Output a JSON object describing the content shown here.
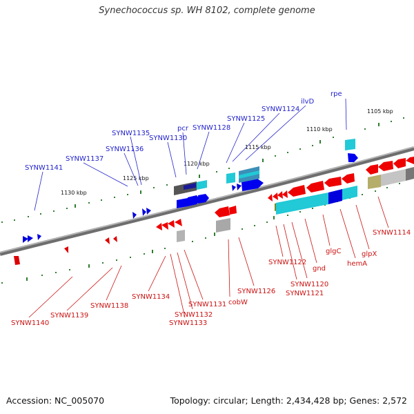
{
  "title": "Synechococcus sp. WH 8102, complete genome",
  "footer": {
    "accession": "Accession: NC_005070",
    "stats": "Topology: circular; Length: 2,434,428 bp; Genes: 2,572"
  },
  "colors": {
    "forward_strand_label": "#2222cc",
    "reverse_strand_label": "#cc1111",
    "backbone": "#777777"
  },
  "scale_ticks": [
    "1105 kbp",
    "1110 kbp",
    "1115 kbp",
    "1120 kbp",
    "1125 kbp",
    "1130 kbp"
  ],
  "forward_gene_labels": [
    "rpe",
    "ilvD",
    "SYNW1124",
    "SYNW1125",
    "SYNW1128",
    "pcr",
    "SYNW1130",
    "SYNW1135",
    "SYNW1136",
    "SYNW1137",
    "SYNW1141"
  ],
  "reverse_gene_labels": [
    "SYNW1114",
    "glpX",
    "hemA",
    "glgC",
    "gnd",
    "SYNW1122",
    "SYNW1120",
    "SYNW1121",
    "SYNW1126",
    "cobW",
    "SYNW1131",
    "SYNW1132",
    "SYNW1133",
    "SYNW1134",
    "SYNW1138",
    "SYNW1139",
    "SYNW1140"
  ]
}
